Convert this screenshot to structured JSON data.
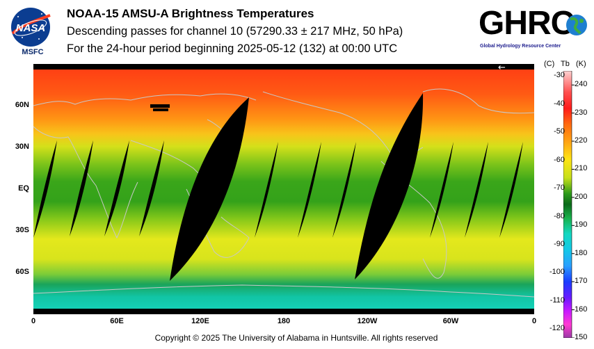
{
  "header": {
    "title": "NOAA-15 AMSU-A Brightness Temperatures",
    "subtitle": "Descending passes for channel 10 (57290.33 ± 217 MHz, 50 hPa)",
    "period": "For the 24-hour period beginning 2025-05-12 (132) at 00:00 UTC"
  },
  "logos": {
    "nasa_word": "NASA",
    "msfc_label": "MSFC",
    "ghrc_text": "GHRC",
    "ghrc_tagline": "Global Hydrology Resource Center"
  },
  "map": {
    "lat_labels": [
      {
        "text": "60N",
        "lat": 60
      },
      {
        "text": "30N",
        "lat": 30
      },
      {
        "text": "EQ",
        "lat": 0
      },
      {
        "text": "30S",
        "lat": -30
      },
      {
        "text": "60S",
        "lat": -60
      }
    ],
    "lon_labels": [
      {
        "text": "0",
        "lon": 0
      },
      {
        "text": "60E",
        "lon": 60
      },
      {
        "text": "120E",
        "lon": 120
      },
      {
        "text": "180",
        "lon": 180
      },
      {
        "text": "120W",
        "lon": 240
      },
      {
        "text": "60W",
        "lon": 300
      },
      {
        "text": "0",
        "lon": 360
      }
    ],
    "direction_arrow": "←",
    "field_colors": {
      "north_polar": "#ff4a1a",
      "north_mid": "#ff9a10",
      "subtropics": "#d6e21a",
      "tropics": "#33a41a",
      "south_mid": "#e2e81e",
      "south_high": "#1aa85a",
      "south_polar": "#14d4b8",
      "gap": "#000000",
      "coastline": "#c8c8c8"
    }
  },
  "colorbar": {
    "celsius_header": "(C)",
    "tb_header": "Tb",
    "kelvin_header": "(K)",
    "kelvin_min": 150,
    "kelvin_max": 245,
    "celsius_ticks": [
      "-30",
      "-40",
      "-50",
      "-60",
      "-70",
      "-80",
      "-90",
      "-100",
      "-110",
      "-120"
    ],
    "kelvin_ticks": [
      "240",
      "230",
      "220",
      "210",
      "200",
      "190",
      "180",
      "170",
      "160",
      "150"
    ]
  },
  "footer": {
    "copyright": "Copyright © 2025 The University of Alabama in Huntsville.  All rights reserved"
  }
}
